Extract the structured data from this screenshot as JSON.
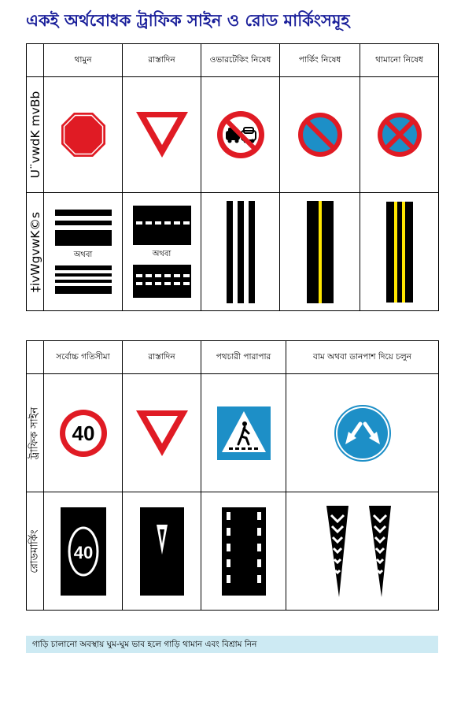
{
  "title": "একই অর্থবোধক ট্রাফিক সাইন ও রোড মার্কিংসমূহ",
  "table1": {
    "headers": [
      "থামুন",
      "রাস্তাদিন",
      "ওভারটেকিং নিষেধ",
      "পার্কিং নিষেধ",
      "থামানো নিষেধ"
    ],
    "row_labels": {
      "sign": "U¨vwdK mvBb",
      "marking": "‡ivWgvwK©s"
    },
    "or_text": "অথবা"
  },
  "table2": {
    "headers": [
      "সর্বোচ্চ গতিসীমা",
      "রাস্তাদিন",
      "পথচারী পারাপার",
      "বাম অথবা ডানপাশ দিয়ে চলুন"
    ],
    "row_labels": {
      "sign": "ট্রাফিক সাইন",
      "marking": "রোডমার্কিং"
    },
    "speed_limit": "40"
  },
  "footer": "গাড়ি চালানো অবস্থায় ঘুম-ঘুম ভাব হলে গাড়ি থামান এবং বিশ্রাম নিন",
  "colors": {
    "title": "#1a1f9a",
    "sign_red": "#e01b24",
    "sign_blue": "#1d8fc7",
    "footer_bg": "#cdeaf3",
    "yellow_line": "#ffe600"
  },
  "icons": [
    "stop-sign-icon",
    "give-way-sign-icon",
    "no-overtaking-sign-icon",
    "no-parking-sign-icon",
    "no-stopping-sign-icon",
    "speed-limit-sign-icon",
    "pedestrian-crossing-sign-icon",
    "keep-left-or-right-sign-icon"
  ]
}
